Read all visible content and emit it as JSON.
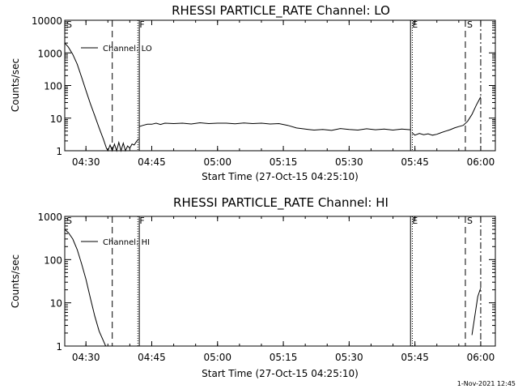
{
  "footer": {
    "date": "1-Nov-2021 12:45"
  },
  "chart_data": [
    {
      "type": "line",
      "title": "RHESSI PARTICLE_RATE Channel: LO",
      "xlabel": "Start Time (27-Oct-15 04:25:10)",
      "ylabel": "Counts/sec",
      "yscale": "log",
      "xlim": [
        "04:25:10",
        "06:03:20"
      ],
      "ylim": [
        1,
        10000
      ],
      "x_ticks": [
        "04:30",
        "04:45",
        "05:00",
        "05:15",
        "05:30",
        "05:45",
        "06:00"
      ],
      "y_ticks": [
        "1",
        "10",
        "100",
        "1000",
        "10000"
      ],
      "legend": {
        "position": "top-left",
        "entries": [
          "Channel: LO"
        ]
      },
      "event_lines": [
        {
          "label": "S",
          "time": "04:25:10",
          "style": "solid"
        },
        {
          "label": "",
          "time": "04:36:00",
          "style": "dashed"
        },
        {
          "label": "F",
          "time": "04:41:50",
          "style": "dotted"
        },
        {
          "label": "",
          "time": "04:42:10",
          "style": "solid"
        },
        {
          "label": "E",
          "time": "05:44:00",
          "style": "solid"
        },
        {
          "label": "",
          "time": "05:44:25",
          "style": "dotted"
        },
        {
          "label": "S",
          "time": "05:56:30",
          "style": "dashed"
        },
        {
          "label": "",
          "time": "06:00:00",
          "style": "dashdot"
        }
      ],
      "series": [
        {
          "name": "Channel: LO",
          "segments": [
            {
              "x": [
                "04:25:10",
                "04:26:00",
                "04:27:00",
                "04:28:00",
                "04:29:00",
                "04:30:00",
                "04:31:00",
                "04:32:00",
                "04:33:00",
                "04:34:00",
                "04:34:40",
                "04:35:00",
                "04:35:30",
                "04:36:00",
                "04:36:30",
                "04:37:00",
                "04:37:30",
                "04:38:00",
                "04:38:30",
                "04:39:00",
                "04:39:30",
                "04:40:00",
                "04:40:30",
                "04:41:00",
                "04:41:30",
                "04:42:00"
              ],
              "y": [
                2000,
                1500,
                900,
                450,
                180,
                70,
                28,
                12,
                5,
                2.2,
                1.2,
                1,
                1.5,
                1,
                1.6,
                1,
                1.8,
                1,
                1.7,
                1,
                1.4,
                1.2,
                1.6,
                1.5,
                1.9,
                2.3
              ]
            },
            {
              "x": [
                "04:42:10",
                "04:43:00",
                "04:44:00",
                "04:45:00",
                "04:46:00",
                "04:47:00",
                "04:48:00",
                "04:50:00",
                "04:52:00",
                "04:54:00",
                "04:56:00",
                "04:58:00",
                "05:00:00",
                "05:02:00",
                "05:04:00",
                "05:06:00",
                "05:08:00",
                "05:10:00",
                "05:12:00",
                "05:14:00",
                "05:16:00",
                "05:18:00",
                "05:20:00",
                "05:22:00",
                "05:24:00",
                "05:26:00",
                "05:28:00",
                "05:30:00",
                "05:32:00",
                "05:34:00",
                "05:36:00",
                "05:38:00",
                "05:40:00",
                "05:42:00",
                "05:44:00"
              ],
              "y": [
                5.5,
                6,
                6.5,
                6.5,
                7,
                6.4,
                7,
                6.8,
                7,
                6.6,
                7.2,
                6.8,
                7,
                7,
                6.7,
                7.1,
                6.8,
                7,
                6.6,
                6.8,
                6,
                5,
                4.6,
                4.3,
                4.5,
                4.2,
                4.8,
                4.5,
                4.3,
                4.7,
                4.4,
                4.6,
                4.3,
                4.6,
                4.4
              ]
            },
            {
              "x": [
                "05:44:25",
                "05:45:00",
                "05:46:00",
                "05:47:00",
                "05:48:00",
                "05:49:00",
                "05:50:00",
                "05:51:00",
                "05:52:00",
                "05:53:00",
                "05:54:00",
                "05:55:00",
                "05:56:00",
                "05:57:00",
                "05:58:00",
                "05:59:00",
                "06:00:00"
              ],
              "y": [
                3.5,
                3,
                3.4,
                3.1,
                3.3,
                3,
                3.2,
                3.6,
                4,
                4.4,
                5,
                5.5,
                6,
                8,
                13,
                25,
                45
              ]
            }
          ]
        }
      ]
    },
    {
      "type": "line",
      "title": "RHESSI PARTICLE_RATE Channel: HI",
      "xlabel": "Start Time (27-Oct-15 04:25:10)",
      "ylabel": "Counts/sec",
      "yscale": "log",
      "xlim": [
        "04:25:10",
        "06:03:20"
      ],
      "ylim": [
        1,
        1000
      ],
      "x_ticks": [
        "04:30",
        "04:45",
        "05:00",
        "05:15",
        "05:30",
        "05:45",
        "06:00"
      ],
      "y_ticks": [
        "1",
        "10",
        "100",
        "1000"
      ],
      "legend": {
        "position": "top-left",
        "entries": [
          "Channel: HI"
        ]
      },
      "event_lines": [
        {
          "label": "S",
          "time": "04:25:10",
          "style": "solid"
        },
        {
          "label": "",
          "time": "04:36:00",
          "style": "dashed"
        },
        {
          "label": "F",
          "time": "04:41:50",
          "style": "dotted"
        },
        {
          "label": "",
          "time": "04:42:10",
          "style": "solid"
        },
        {
          "label": "E",
          "time": "05:44:00",
          "style": "solid"
        },
        {
          "label": "",
          "time": "05:44:25",
          "style": "dotted"
        },
        {
          "label": "S",
          "time": "05:56:30",
          "style": "dashed"
        },
        {
          "label": "",
          "time": "06:00:00",
          "style": "dashdot"
        }
      ],
      "series": [
        {
          "name": "Channel: HI",
          "segments": [
            {
              "x": [
                "04:25:10",
                "04:26:00",
                "04:27:00",
                "04:28:00",
                "04:29:00",
                "04:30:00",
                "04:31:00",
                "04:32:00",
                "04:33:00",
                "04:34:00",
                "04:34:30"
              ],
              "y": [
                500,
                420,
                300,
                170,
                80,
                35,
                13,
                5,
                2.2,
                1.3,
                1
              ]
            },
            {
              "x": [
                "05:58:00",
                "05:58:40",
                "05:59:20",
                "06:00:00"
              ],
              "y": [
                1.8,
                5,
                14,
                22
              ]
            }
          ]
        }
      ]
    }
  ]
}
